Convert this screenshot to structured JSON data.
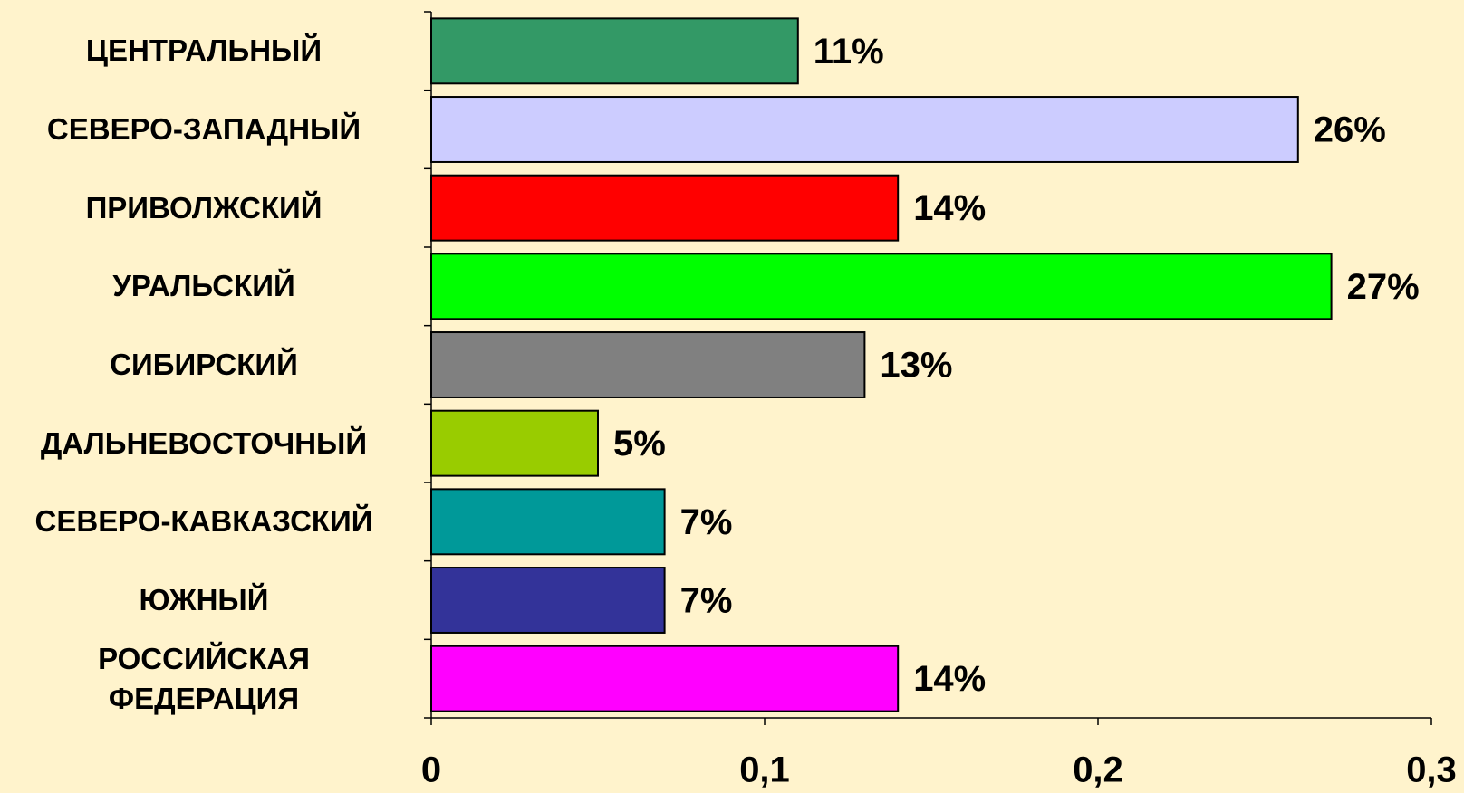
{
  "chart_data": {
    "type": "bar",
    "orientation": "horizontal",
    "categories": [
      "ЦЕНТРАЛЬНЫЙ",
      "СЕВЕРО-ЗАПАДНЫЙ",
      "ПРИВОЛЖСКИЙ",
      "УРАЛЬСКИЙ",
      "СИБИРСКИЙ",
      "ДАЛЬНЕВОСТОЧНЫЙ",
      "СЕВЕРО-КАВКАЗСКИЙ",
      "ЮЖНЫЙ",
      "РОССИЙСКАЯ\nФЕДЕРАЦИЯ"
    ],
    "values": [
      0.11,
      0.26,
      0.14,
      0.27,
      0.13,
      0.05,
      0.07,
      0.07,
      0.14
    ],
    "value_labels": [
      "11%",
      "26%",
      "14%",
      "27%",
      "13%",
      "5%",
      "7%",
      "7%",
      "14%"
    ],
    "colors": [
      "#339966",
      "#ccccff",
      "#ff0000",
      "#00ff00",
      "#808080",
      "#99cc00",
      "#009999",
      "#333399",
      "#ff00ff"
    ],
    "xlim": [
      0,
      0.3
    ],
    "xticks": [
      0,
      {
        "value": 0.1,
        "label": "0,1"
      },
      {
        "value": 0.2,
        "label": "0,2"
      },
      {
        "value": 0.3,
        "label": "0,3"
      }
    ]
  }
}
